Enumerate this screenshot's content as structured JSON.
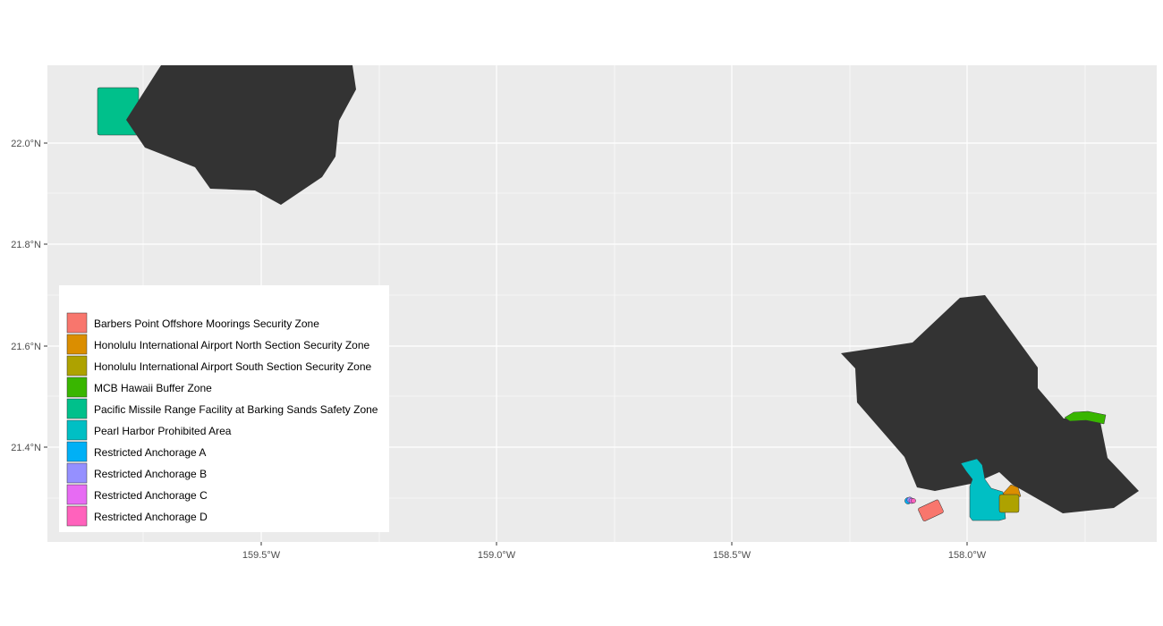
{
  "map": {
    "background": "#ebebeb",
    "grid_color": "#ffffff",
    "land_color": "#333333",
    "axes": {
      "x_ticks": [
        "159.5°W",
        "159.0°W",
        "158.5°W",
        "158.0°W"
      ],
      "y_ticks": [
        "22.0°N",
        "21.8°N",
        "21.6°N",
        "21.4°N"
      ]
    },
    "legend": {
      "placement": "bottom-left",
      "entries": [
        {
          "label": "Barbers Point Offshore Moorings Security Zone",
          "color": "#f8766d"
        },
        {
          "label": "Honolulu International Airport North Section Security Zone",
          "color": "#db8e00"
        },
        {
          "label": "Honolulu International Airport South Section Security Zone",
          "color": "#aea200"
        },
        {
          "label": "MCB Hawaii Buffer Zone",
          "color": "#39b600"
        },
        {
          "label": "Pacific Missile Range Facility at Barking Sands Safety Zone",
          "color": "#00c08b"
        },
        {
          "label": "Pearl Harbor Prohibited Area",
          "color": "#00bfc4"
        },
        {
          "label": "Restricted Anchorage A",
          "color": "#00b0f6"
        },
        {
          "label": "Restricted Anchorage B",
          "color": "#9590ff"
        },
        {
          "label": "Restricted Anchorage C",
          "color": "#e76bf3"
        },
        {
          "label": "Restricted Anchorage D",
          "color": "#ff62bc"
        }
      ]
    }
  }
}
